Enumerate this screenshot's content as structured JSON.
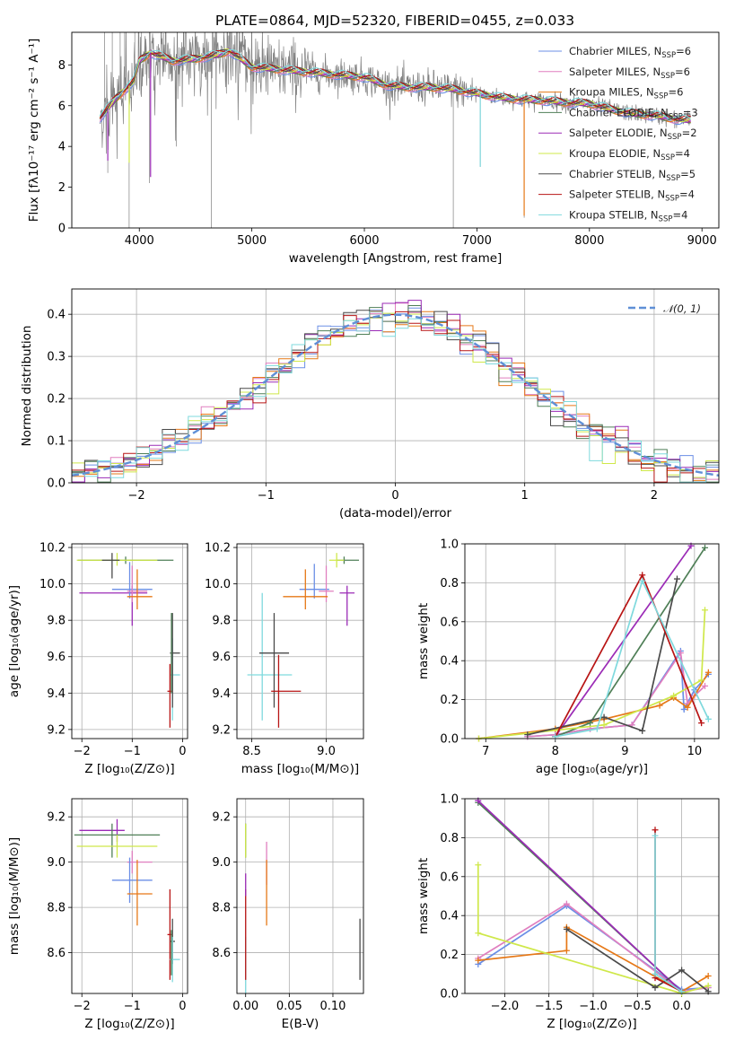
{
  "figure": {
    "title": "PLATE=0864, MJD=52320, FIBERID=0455, z=0.033"
  },
  "series_styles": [
    {
      "name": "Chabrier MILES, N$_{SSP}$=6",
      "legend_main": "Chabrier MILES, N",
      "legend_sub": "SSP",
      "legend_tail": "=6",
      "color": "#6b8fe6"
    },
    {
      "name": "Salpeter MILES, N$_{SSP}$=6",
      "legend_main": "Salpeter MILES, N",
      "legend_sub": "SSP",
      "legend_tail": "=6",
      "color": "#e07fbf"
    },
    {
      "name": "Kroupa MILES, N$_{SSP}$=6",
      "legend_main": "Kroupa MILES, N",
      "legend_sub": "SSP",
      "legend_tail": "=6",
      "color": "#e67817"
    },
    {
      "name": "Chabrier ELODIE, N$_{SSP}$=3",
      "legend_main": "Chabrier ELODIE, N",
      "legend_sub": "SSP",
      "legend_tail": "=3",
      "color": "#4f7f57"
    },
    {
      "name": "Salpeter ELODIE, N$_{SSP}$=2",
      "legend_main": "Salpeter ELODIE, N",
      "legend_sub": "SSP",
      "legend_tail": "=2",
      "color": "#9b2bb6"
    },
    {
      "name": "Kroupa ELODIE, N$_{SSP}$=4",
      "legend_main": "Kroupa ELODIE, N",
      "legend_sub": "SSP",
      "legend_tail": "=4",
      "color": "#cfe84a"
    },
    {
      "name": "Chabrier STELIB, N$_{SSP}$=5",
      "legend_main": "Chabrier STELIB, N",
      "legend_sub": "SSP",
      "legend_tail": "=5",
      "color": "#4a4a4a"
    },
    {
      "name": "Salpeter STELIB, N$_{SSP}$=4",
      "legend_main": "Salpeter STELIB, N",
      "legend_sub": "SSP",
      "legend_tail": "=4",
      "color": "#b81414"
    },
    {
      "name": "Kroupa STELIB, N$_{SSP}$=4",
      "legend_main": "Kroupa STELIB, N",
      "legend_sub": "SSP",
      "legend_tail": "=4",
      "color": "#7fd9dd"
    }
  ],
  "chart_data": [
    {
      "id": "spectrum",
      "type": "line",
      "xlabel": "wavelength [Angstrom, rest frame]",
      "ylabel": "Flux [f$_\\lambda$10$^{-17}$ erg cm$^{-2}$ s$^{-1}$ A$^{-1}$]",
      "ylabel_display": "Flux [fλ10⁻¹⁷ erg cm⁻² s⁻¹ A⁻¹]",
      "xlim": [
        3400,
        9150
      ],
      "ylim": [
        0,
        9.6
      ],
      "xticks": [
        4000,
        5000,
        6000,
        7000,
        8000,
        9000
      ],
      "yticks": [
        0,
        2,
        4,
        6,
        8
      ],
      "grid": false,
      "legend": "top-right",
      "data_color": "#808080",
      "data_range": [
        3650,
        8900
      ],
      "model_curve": {
        "x": [
          3650,
          3800,
          3950,
          4000,
          4100,
          4300,
          4500,
          4700,
          4800,
          4900,
          5000,
          5200,
          5400,
          5600,
          5800,
          6000,
          6200,
          6400,
          6600,
          6800,
          7000,
          7200,
          7400,
          7600,
          7800,
          8000,
          8200,
          8400,
          8600,
          8800
        ],
        "y": [
          5.4,
          6.4,
          7.2,
          8.2,
          8.6,
          8.2,
          8.3,
          8.5,
          8.7,
          8.3,
          7.9,
          7.8,
          7.7,
          7.6,
          7.5,
          7.4,
          7.0,
          6.9,
          6.9,
          6.8,
          6.6,
          6.4,
          6.3,
          6.25,
          6.15,
          6.1,
          5.8,
          5.6,
          5.5,
          5.3
        ]
      },
      "dips": [
        {
          "x": 4640,
          "y": 0.0
        },
        {
          "x": 3910,
          "y": 0.0
        },
        {
          "x": 6790,
          "y": 0.0
        },
        {
          "x": 7420,
          "y": 0.5
        },
        {
          "x": 4090,
          "y": 2.2
        },
        {
          "x": 3720,
          "y": 2.7
        },
        {
          "x": 7030,
          "y": 3.0
        },
        {
          "x": 4330,
          "y": 4.0
        }
      ]
    },
    {
      "id": "residuals",
      "type": "step",
      "xlabel": "(data-model)/error",
      "ylabel": "Normed distribution",
      "xlim": [
        -2.5,
        2.5
      ],
      "ylim": [
        0,
        0.46
      ],
      "xticks": [
        -2,
        -1,
        0,
        1,
        2
      ],
      "yticks": [
        0.0,
        0.1,
        0.2,
        0.3,
        0.4
      ],
      "grid": true,
      "legend": "top-right",
      "legend_label": "𝒩(0, 1)",
      "normal_color": "#5f8fd6",
      "bins": [
        -2.5,
        2.5,
        50
      ]
    },
    {
      "id": "age_vs_Z",
      "type": "scatter",
      "xlabel": "Z [log₁₀(Z/Z⊙)]",
      "ylabel": "age  [log₁₀(age/yr)]",
      "xlim": [
        -2.2,
        0.1
      ],
      "ylim": [
        9.15,
        10.22
      ],
      "xticks": [
        -2,
        -1,
        0
      ],
      "yticks": [
        9.2,
        9.4,
        9.6,
        9.8,
        10.0,
        10.2
      ],
      "grid": true,
      "errorbars": [
        {
          "series": 3,
          "x": -1.13,
          "xerr": [
            0.95,
            0.95
          ],
          "y": 10.13,
          "yerr": [
            0.02,
            0.02
          ]
        },
        {
          "series": 5,
          "x": -1.3,
          "xerr": [
            0.8,
            0.8
          ],
          "y": 10.13,
          "yerr": [
            0.03,
            0.04
          ]
        },
        {
          "series": 6,
          "x": -1.4,
          "xerr": [
            0.2,
            0.15
          ],
          "y": 10.13,
          "yerr": [
            0.1,
            0.04
          ]
        },
        {
          "series": 4,
          "x": -1.0,
          "xerr": [
            1.05,
            0.3
          ],
          "y": 9.95,
          "yerr": [
            0.18,
            0.04
          ]
        },
        {
          "series": 0,
          "x": -1.05,
          "xerr": [
            0.35,
            0.45
          ],
          "y": 9.97,
          "yerr": [
            0.05,
            0.15
          ]
        },
        {
          "series": 1,
          "x": -1.0,
          "xerr": [
            0.1,
            0.3
          ],
          "y": 9.96,
          "yerr": [
            0.06,
            0.14
          ]
        },
        {
          "series": 2,
          "x": -0.9,
          "xerr": [
            0.2,
            0.3
          ],
          "y": 9.93,
          "yerr": [
            0.07,
            0.15
          ]
        },
        {
          "series": 8,
          "x": -0.2,
          "xerr": [
            0.05,
            0.15
          ],
          "y": 9.5,
          "yerr": [
            0.25,
            0.2
          ]
        },
        {
          "series": 6,
          "x": -0.2,
          "xerr": [
            0.05,
            0.15
          ],
          "y": 9.62,
          "yerr": [
            0.3,
            0.22
          ]
        },
        {
          "series": 7,
          "x": -0.25,
          "xerr": [
            0.05,
            0.05
          ],
          "y": 9.41,
          "yerr": [
            0.2,
            0.15
          ]
        },
        {
          "series": 3,
          "x": -0.22,
          "xerr": [
            0.0,
            0.0
          ],
          "y": 9.7,
          "yerr": [
            0.3,
            0.14
          ]
        }
      ]
    },
    {
      "id": "age_vs_mass",
      "type": "scatter",
      "xlabel": "mass [log₁₀(M/M⊙)]",
      "ylabel": "",
      "xlim": [
        8.4,
        9.25
      ],
      "ylim": [
        9.15,
        10.22
      ],
      "xticks": [
        8.5,
        9.0
      ],
      "yticks": [
        9.2,
        9.4,
        9.6,
        9.8,
        10.0,
        10.2
      ],
      "grid": true,
      "errorbars": [
        {
          "series": 3,
          "x": 9.12,
          "xerr": [
            0.05,
            0.1
          ],
          "y": 10.13,
          "yerr": [
            0.02,
            0.02
          ]
        },
        {
          "series": 5,
          "x": 9.07,
          "xerr": [
            0.05,
            0.05
          ],
          "y": 10.13,
          "yerr": [
            0.04,
            0.04
          ]
        },
        {
          "series": 4,
          "x": 9.14,
          "xerr": [
            0.05,
            0.05
          ],
          "y": 9.95,
          "yerr": [
            0.18,
            0.04
          ]
        },
        {
          "series": 0,
          "x": 8.92,
          "xerr": [
            0.1,
            0.1
          ],
          "y": 9.97,
          "yerr": [
            0.05,
            0.14
          ]
        },
        {
          "series": 1,
          "x": 9.0,
          "xerr": [
            0.05,
            0.05
          ],
          "y": 9.96,
          "yerr": [
            0.06,
            0.14
          ]
        },
        {
          "series": 2,
          "x": 8.86,
          "xerr": [
            0.15,
            0.15
          ],
          "y": 9.93,
          "yerr": [
            0.07,
            0.15
          ]
        },
        {
          "series": 8,
          "x": 8.57,
          "xerr": [
            0.1,
            0.2
          ],
          "y": 9.5,
          "yerr": [
            0.25,
            0.45
          ]
        },
        {
          "series": 6,
          "x": 8.65,
          "xerr": [
            0.1,
            0.1
          ],
          "y": 9.62,
          "yerr": [
            0.3,
            0.22
          ]
        },
        {
          "series": 7,
          "x": 8.68,
          "xerr": [
            0.05,
            0.15
          ],
          "y": 9.41,
          "yerr": [
            0.2,
            0.2
          ]
        }
      ]
    },
    {
      "id": "massweight_vs_age",
      "type": "line",
      "xlabel": "age  [log₁₀(age/yr)]",
      "ylabel": "mass weight",
      "xlim": [
        6.7,
        10.35
      ],
      "ylim": [
        0,
        1.0
      ],
      "xticks": [
        7,
        8,
        9,
        10
      ],
      "yticks": [
        0.0,
        0.2,
        0.4,
        0.6,
        0.8,
        1.0
      ],
      "grid": true,
      "series": [
        {
          "series": 0,
          "x": [
            7.6,
            8.0,
            8.5,
            9.1,
            9.8,
            9.85,
            10.0,
            10.2
          ],
          "y": [
            0.01,
            0.02,
            0.05,
            0.07,
            0.45,
            0.15,
            0.25,
            0.33
          ]
        },
        {
          "series": 1,
          "x": [
            7.6,
            8.0,
            8.5,
            9.1,
            9.8,
            9.9,
            10.0,
            10.15
          ],
          "y": [
            0.01,
            0.02,
            0.05,
            0.07,
            0.44,
            0.18,
            0.22,
            0.27
          ]
        },
        {
          "series": 2,
          "x": [
            6.9,
            8.0,
            8.7,
            9.5,
            9.7,
            9.9,
            10.2
          ],
          "y": [
            0.0,
            0.05,
            0.1,
            0.17,
            0.21,
            0.16,
            0.34
          ]
        },
        {
          "series": 3,
          "x": [
            8.0,
            8.5,
            10.15
          ],
          "y": [
            0.01,
            0.08,
            0.98
          ]
        },
        {
          "series": 4,
          "x": [
            8.0,
            9.95
          ],
          "y": [
            0.01,
            0.99
          ]
        },
        {
          "series": 5,
          "x": [
            6.9,
            8.7,
            9.7,
            10.1,
            10.15
          ],
          "y": [
            0.0,
            0.07,
            0.22,
            0.3,
            0.66
          ]
        },
        {
          "series": 6,
          "x": [
            7.6,
            8.7,
            9.25,
            9.75
          ],
          "y": [
            0.02,
            0.11,
            0.04,
            0.82
          ]
        },
        {
          "series": 7,
          "x": [
            8.0,
            9.25,
            10.1
          ],
          "y": [
            0.01,
            0.84,
            0.08
          ]
        },
        {
          "series": 8,
          "x": [
            8.0,
            8.6,
            9.25,
            10.2
          ],
          "y": [
            0.01,
            0.05,
            0.81,
            0.1
          ]
        }
      ]
    },
    {
      "id": "mass_vs_Z",
      "type": "scatter",
      "xlabel": "Z [log₁₀(Z/Z⊙)]",
      "ylabel": "mass [log₁₀(M/M⊙)]",
      "xlim": [
        -2.2,
        0.1
      ],
      "ylim": [
        8.42,
        9.28
      ],
      "xticks": [
        -2,
        -1,
        0
      ],
      "yticks": [
        8.6,
        8.8,
        9.0,
        9.2
      ],
      "grid": true,
      "errorbars": [
        {
          "series": 4,
          "x": -1.3,
          "xerr": [
            0.75,
            0.15
          ],
          "y": 9.14,
          "yerr": [
            0.05,
            0.05
          ]
        },
        {
          "series": 3,
          "x": -1.4,
          "xerr": [
            0.75,
            0.95
          ],
          "y": 9.12,
          "yerr": [
            0.1,
            0.05
          ]
        },
        {
          "series": 5,
          "x": -1.3,
          "xerr": [
            0.8,
            0.8
          ],
          "y": 9.07,
          "yerr": [
            0.05,
            0.05
          ]
        },
        {
          "series": 1,
          "x": -1.0,
          "xerr": [
            0.1,
            0.4
          ],
          "y": 9.0,
          "yerr": [
            0.05,
            0.05
          ]
        },
        {
          "series": 0,
          "x": -1.05,
          "xerr": [
            0.35,
            0.45
          ],
          "y": 8.92,
          "yerr": [
            0.1,
            0.1
          ]
        },
        {
          "series": 2,
          "x": -0.9,
          "xerr": [
            0.2,
            0.3
          ],
          "y": 8.86,
          "yerr": [
            0.14,
            0.15
          ]
        },
        {
          "series": 7,
          "x": -0.25,
          "xerr": [
            0.05,
            0.05
          ],
          "y": 8.68,
          "yerr": [
            0.2,
            0.2
          ]
        },
        {
          "series": 6,
          "x": -0.2,
          "xerr": [
            0.05,
            0.05
          ],
          "y": 8.65,
          "yerr": [
            0.1,
            0.1
          ]
        },
        {
          "series": 8,
          "x": -0.2,
          "xerr": [
            0.05,
            0.15
          ],
          "y": 8.57,
          "yerr": [
            0.1,
            0.1
          ]
        },
        {
          "series": 3,
          "x": -0.22,
          "xerr": [
            0.0,
            0.0
          ],
          "y": 8.6,
          "yerr": [
            0.1,
            0.1
          ]
        }
      ]
    },
    {
      "id": "mass_vs_ebv",
      "type": "scatter",
      "xlabel": "E(B-V)",
      "ylabel": "",
      "xlim": [
        -0.01,
        0.135
      ],
      "ylim": [
        8.42,
        9.28
      ],
      "xticks": [
        0.0,
        0.05,
        0.1
      ],
      "yticks": [
        8.6,
        8.8,
        9.0,
        9.2
      ],
      "grid": true,
      "errorbars": [
        {
          "series": 3,
          "x": 0.0,
          "xerr": [
            0,
            0
          ],
          "y": 9.12,
          "yerr": [
            0.1,
            0.05
          ]
        },
        {
          "series": 5,
          "x": 0.0,
          "xerr": [
            0,
            0
          ],
          "y": 9.07,
          "yerr": [
            0.05,
            0.1
          ]
        },
        {
          "series": 8,
          "x": 0.0,
          "xerr": [
            0,
            0
          ],
          "y": 8.57,
          "yerr": [
            0.15,
            0.1
          ]
        },
        {
          "series": 7,
          "x": 0.0,
          "xerr": [
            0,
            0
          ],
          "y": 8.68,
          "yerr": [
            0.2,
            0.2
          ]
        },
        {
          "series": 4,
          "x": 0.0,
          "xerr": [
            0,
            0
          ],
          "y": 8.9,
          "yerr": [
            0.05,
            0.05
          ]
        },
        {
          "series": 1,
          "x": 0.024,
          "xerr": [
            0,
            0
          ],
          "y": 9.0,
          "yerr": [
            0.1,
            0.09
          ]
        },
        {
          "series": 2,
          "x": 0.024,
          "xerr": [
            0,
            0
          ],
          "y": 8.86,
          "yerr": [
            0.14,
            0.15
          ]
        },
        {
          "series": 6,
          "x": 0.131,
          "xerr": [
            0,
            0
          ],
          "y": 8.61,
          "yerr": [
            0.13,
            0.14
          ]
        }
      ]
    },
    {
      "id": "massweight_vs_Z",
      "type": "line",
      "xlabel": "Z [log₁₀(Z/Z⊙)]",
      "ylabel": "mass weight",
      "xlim": [
        -2.45,
        0.42
      ],
      "ylim": [
        0,
        1.0
      ],
      "xticks": [
        -2.0,
        -1.5,
        -1.0,
        -0.5,
        0.0
      ],
      "yticks": [
        0.0,
        0.2,
        0.4,
        0.6,
        0.8,
        1.0
      ],
      "grid": true,
      "series": [
        {
          "series": 0,
          "x": [
            -2.3,
            -1.3,
            0.0,
            0.3
          ],
          "y": [
            0.15,
            0.45,
            0.02,
            0.03
          ]
        },
        {
          "series": 1,
          "x": [
            -2.3,
            -1.3,
            0.0,
            0.3
          ],
          "y": [
            0.18,
            0.46,
            0.01,
            0.03
          ]
        },
        {
          "series": 2,
          "x": [
            -2.3,
            -1.3,
            -1.3,
            0.0,
            0.3
          ],
          "y": [
            0.17,
            0.22,
            0.34,
            0.01,
            0.09
          ]
        },
        {
          "series": 3,
          "x": [
            -2.3,
            0.0
          ],
          "y": [
            0.98,
            0.01
          ]
        },
        {
          "series": 4,
          "x": [
            -2.3,
            0.0
          ],
          "y": [
            0.99,
            0.01
          ]
        },
        {
          "series": 5,
          "x": [
            -2.3,
            -2.3,
            0.0,
            0.3
          ],
          "y": [
            0.66,
            0.31,
            0.0,
            0.04
          ]
        },
        {
          "series": 6,
          "x": [
            -1.3,
            -0.3,
            0.0,
            0.3
          ],
          "y": [
            0.33,
            0.03,
            0.12,
            0.01
          ]
        },
        {
          "series": 7,
          "x": [
            -0.3,
            -0.3,
            0.0
          ],
          "y": [
            0.84,
            0.08,
            0.01
          ]
        },
        {
          "series": 8,
          "x": [
            -0.3,
            -0.3,
            0.0
          ],
          "y": [
            0.81,
            0.1,
            0.01
          ]
        }
      ]
    }
  ]
}
